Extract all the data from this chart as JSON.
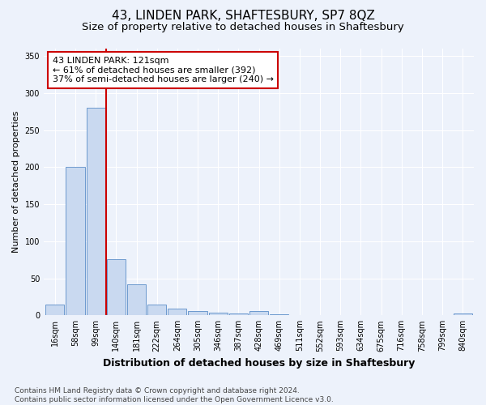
{
  "title1": "43, LINDEN PARK, SHAFTESBURY, SP7 8QZ",
  "title2": "Size of property relative to detached houses in Shaftesbury",
  "xlabel": "Distribution of detached houses by size in Shaftesbury",
  "ylabel": "Number of detached properties",
  "bin_labels": [
    "16sqm",
    "58sqm",
    "99sqm",
    "140sqm",
    "181sqm",
    "222sqm",
    "264sqm",
    "305sqm",
    "346sqm",
    "387sqm",
    "428sqm",
    "469sqm",
    "511sqm",
    "552sqm",
    "593sqm",
    "634sqm",
    "675sqm",
    "716sqm",
    "758sqm",
    "799sqm",
    "840sqm"
  ],
  "bar_values": [
    14,
    200,
    280,
    76,
    42,
    15,
    9,
    6,
    4,
    2,
    6,
    1,
    0,
    0,
    0,
    0,
    0,
    0,
    0,
    0,
    2
  ],
  "bar_color": "#c9d9f0",
  "bar_edge_color": "#5b8dc8",
  "vline_color": "#cc0000",
  "vline_x": 2.5,
  "annotation_text": "43 LINDEN PARK: 121sqm\n← 61% of detached houses are smaller (392)\n37% of semi-detached houses are larger (240) →",
  "annotation_box_edgecolor": "#cc0000",
  "ylim": [
    0,
    360
  ],
  "yticks": [
    0,
    50,
    100,
    150,
    200,
    250,
    300,
    350
  ],
  "footer_text": "Contains HM Land Registry data © Crown copyright and database right 2024.\nContains public sector information licensed under the Open Government Licence v3.0.",
  "bg_color": "#edf2fb",
  "grid_color": "#ffffff",
  "title1_fontsize": 11,
  "title2_fontsize": 9.5,
  "xlabel_fontsize": 9,
  "ylabel_fontsize": 8,
  "tick_fontsize": 7,
  "annotation_fontsize": 8,
  "footer_fontsize": 6.5
}
